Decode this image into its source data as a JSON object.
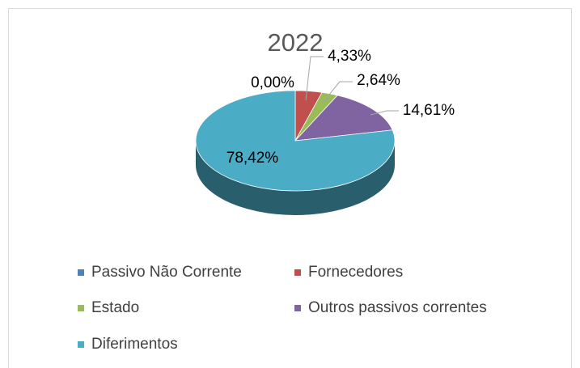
{
  "chart_data": {
    "type": "pie3d",
    "title": "2022",
    "categories": [
      "Passivo Não Corrente",
      "Fornecedores",
      "Estado",
      "Outros passivos correntes",
      "Diferimentos"
    ],
    "values": [
      0.0,
      4.33,
      2.64,
      14.61,
      78.42
    ],
    "value_labels": [
      "0,00%",
      "4,33%",
      "2,64%",
      "14,61%",
      "78,42%"
    ],
    "colors": [
      "#4f81bd",
      "#c0504d",
      "#9bbb59",
      "#8064a2",
      "#4bacc6"
    ],
    "legend": "bottom"
  }
}
